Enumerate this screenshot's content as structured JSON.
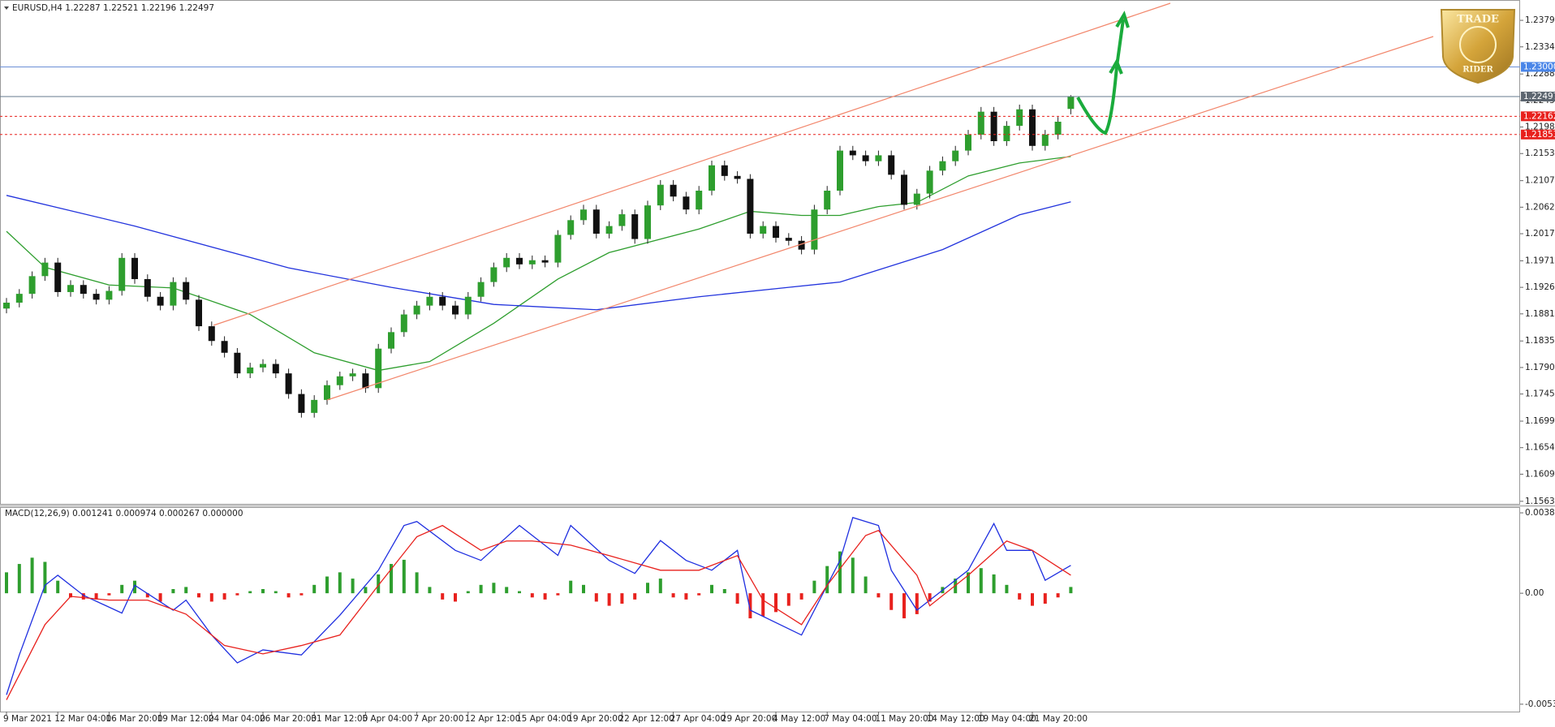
{
  "chart_data": [
    {
      "type": "candlestick",
      "header": "EURUSD,H4  1.22287 1.22521 1.22196 1.22497",
      "ylim": [
        1.156,
        1.2408
      ],
      "yticks": [
        {
          "value": 1.2379,
          "label": "1.23790"
        },
        {
          "value": 1.2334,
          "label": "1.23340"
        },
        {
          "value": 1.2288,
          "label": "1.22880"
        },
        {
          "value": 1.2243,
          "label": "1.22430"
        },
        {
          "value": 1.2198,
          "label": "1.21980"
        },
        {
          "value": 1.2153,
          "label": "1.21530"
        },
        {
          "value": 1.2107,
          "label": "1.21070"
        },
        {
          "value": 1.2062,
          "label": "1.20620"
        },
        {
          "value": 1.2017,
          "label": "1.20170"
        },
        {
          "value": 1.1971,
          "label": "1.19710"
        },
        {
          "value": 1.1926,
          "label": "1.19260"
        },
        {
          "value": 1.1881,
          "label": "1.18810"
        },
        {
          "value": 1.1835,
          "label": "1.18350"
        },
        {
          "value": 1.179,
          "label": "1.17900"
        },
        {
          "value": 1.1745,
          "label": "1.17450"
        },
        {
          "value": 1.1699,
          "label": "1.16990"
        },
        {
          "value": 1.1654,
          "label": "1.16540"
        },
        {
          "value": 1.1609,
          "label": "1.16090"
        },
        {
          "value": 1.1563,
          "label": "1.15630"
        }
      ],
      "up_color": "#2e9e2e",
      "down_color": "#111111",
      "open": [
        1.189,
        1.19,
        1.1915,
        1.1945,
        1.1968,
        1.1918,
        1.193,
        1.1915,
        1.1905,
        1.192,
        1.1976,
        1.194,
        1.191,
        1.1895,
        1.1935,
        1.1905,
        1.186,
        1.1835,
        1.1815,
        1.178,
        1.179,
        1.1796,
        1.178,
        1.1745,
        1.1713,
        1.1735,
        1.176,
        1.1775,
        1.178,
        1.1755,
        1.1822,
        1.185,
        1.188,
        1.1895,
        1.191,
        1.1895,
        1.188,
        1.191,
        1.1935,
        1.196,
        1.1976,
        1.1965,
        1.1972,
        1.1968,
        1.2015,
        1.204,
        1.2058,
        1.2017,
        1.203,
        1.205,
        1.2008,
        1.2065,
        1.21,
        1.208,
        1.2058,
        1.209,
        1.2133,
        1.2115,
        1.211,
        1.2017,
        1.203,
        1.201,
        1.2005,
        1.199,
        1.2058,
        1.209,
        1.2158,
        1.215,
        1.214,
        1.215,
        1.2117,
        1.2066,
        1.2085,
        1.2124,
        1.214,
        1.2158,
        1.2185,
        1.2224,
        1.2174,
        1.22,
        1.2228,
        1.2166,
        1.2185,
        1.22287
      ],
      "high": [
        1.1908,
        1.1923,
        1.1953,
        1.1976,
        1.1976,
        1.1938,
        1.1938,
        1.1923,
        1.1928,
        1.1984,
        1.1984,
        1.1948,
        1.1918,
        1.1943,
        1.1943,
        1.1913,
        1.1868,
        1.1843,
        1.1823,
        1.1798,
        1.1804,
        1.1804,
        1.1788,
        1.1753,
        1.1743,
        1.1768,
        1.1783,
        1.1788,
        1.1788,
        1.183,
        1.1858,
        1.1888,
        1.1903,
        1.1918,
        1.1918,
        1.1903,
        1.1918,
        1.1943,
        1.1968,
        1.1984,
        1.1984,
        1.198,
        1.198,
        1.2023,
        1.2048,
        1.2066,
        1.2066,
        1.2038,
        1.2058,
        1.2058,
        1.2073,
        1.2108,
        1.2108,
        1.2088,
        1.2098,
        1.2141,
        1.2141,
        1.2123,
        1.2118,
        1.2038,
        1.2038,
        1.2018,
        1.2013,
        1.2066,
        1.2098,
        1.2166,
        1.2166,
        1.2158,
        1.2158,
        1.2158,
        1.2125,
        1.2093,
        1.2132,
        1.2148,
        1.2166,
        1.2193,
        1.2232,
        1.2232,
        1.2208,
        1.2236,
        1.2236,
        1.2193,
        1.2215,
        1.22521
      ],
      "low": [
        1.1882,
        1.1892,
        1.1907,
        1.1937,
        1.191,
        1.191,
        1.1907,
        1.1897,
        1.1897,
        1.1912,
        1.1932,
        1.1902,
        1.1887,
        1.1887,
        1.1897,
        1.1852,
        1.1827,
        1.1807,
        1.1772,
        1.1772,
        1.1782,
        1.1772,
        1.1737,
        1.1705,
        1.1705,
        1.1727,
        1.1752,
        1.1767,
        1.1747,
        1.1747,
        1.1814,
        1.1842,
        1.1872,
        1.1887,
        1.1887,
        1.1872,
        1.1872,
        1.1902,
        1.1927,
        1.1952,
        1.1957,
        1.1957,
        1.196,
        1.196,
        1.2007,
        1.2032,
        1.2009,
        1.2009,
        1.2022,
        1.2,
        1.2,
        1.2057,
        1.2072,
        1.205,
        1.205,
        1.2082,
        1.2107,
        1.2102,
        1.2009,
        1.2009,
        1.2002,
        1.1997,
        1.1982,
        1.1982,
        1.205,
        1.2082,
        1.2142,
        1.2132,
        1.2132,
        1.2109,
        1.2058,
        1.2058,
        1.2077,
        1.2116,
        1.2132,
        1.215,
        1.2177,
        1.2166,
        1.2166,
        1.2192,
        1.2158,
        1.2158,
        1.2177,
        1.22196
      ],
      "close": [
        1.19,
        1.1915,
        1.1945,
        1.1968,
        1.1918,
        1.193,
        1.1915,
        1.1905,
        1.192,
        1.1976,
        1.194,
        1.191,
        1.1895,
        1.1935,
        1.1905,
        1.186,
        1.1835,
        1.1815,
        1.178,
        1.179,
        1.1796,
        1.178,
        1.1745,
        1.1713,
        1.1735,
        1.176,
        1.1775,
        1.178,
        1.1755,
        1.1822,
        1.185,
        1.188,
        1.1895,
        1.191,
        1.1895,
        1.188,
        1.191,
        1.1935,
        1.196,
        1.1976,
        1.1965,
        1.1972,
        1.1968,
        1.2015,
        1.204,
        1.2058,
        1.2017,
        1.203,
        1.205,
        1.2008,
        1.2065,
        1.21,
        1.208,
        1.2058,
        1.209,
        1.2133,
        1.2115,
        1.211,
        1.2017,
        1.203,
        1.201,
        1.2005,
        1.199,
        1.2058,
        1.209,
        1.2158,
        1.215,
        1.214,
        1.215,
        1.2117,
        1.2066,
        1.2085,
        1.2124,
        1.214,
        1.2158,
        1.2185,
        1.2224,
        1.2174,
        1.22,
        1.2228,
        1.2166,
        1.2185,
        1.2207,
        1.22497
      ],
      "lines": [
        {
          "color": "#2e9e2e",
          "x": [
            0,
            3,
            8,
            13,
            19,
            24,
            29,
            33,
            38,
            43,
            47,
            54,
            58,
            62,
            65,
            68,
            71,
            75,
            79,
            83
          ],
          "values": [
            1.2021,
            1.196,
            1.193,
            1.1925,
            1.188,
            1.1815,
            1.1785,
            1.18,
            1.1865,
            1.194,
            1.1985,
            1.2025,
            1.2055,
            1.2048,
            1.2048,
            1.2063,
            1.207,
            1.2115,
            1.2137,
            1.2148
          ]
        },
        {
          "color": "#2233dd",
          "x": [
            0,
            10,
            22,
            30,
            38,
            46,
            54,
            61,
            65,
            73,
            79,
            83
          ],
          "values": [
            1.2082,
            1.203,
            1.1959,
            1.1926,
            1.1897,
            1.1888,
            1.191,
            1.1926,
            1.1935,
            1.199,
            1.2049,
            1.2071
          ]
        }
      ],
      "levels": [
        {
          "value": 1.23,
          "label": "1.23000",
          "color": "#6b8fd6",
          "box": "#4a86e8",
          "dashed": false
        },
        {
          "value": 1.22497,
          "label": "1.22497",
          "color": "#66788e",
          "box": "#5d6670",
          "dashed": false
        },
        {
          "value": 1.22162,
          "label": "1.22162",
          "color": "#e8211d",
          "box": "#e8211d",
          "dashed": true
        },
        {
          "value": 1.21853,
          "label": "1.21853",
          "color": "#e8211d",
          "box": "#e8211d",
          "dashed": true
        }
      ]
    },
    {
      "type": "macd",
      "header": "MACD(12,26,9) 0.001241 0.000974 0.000267 0.000000",
      "ylim": [
        -0.00566,
        0.00408
      ],
      "yticks": [
        {
          "value": 0.003845,
          "label": "0.003845"
        },
        {
          "value": 0,
          "label": "0.00"
        },
        {
          "value": -0.005307,
          "label": "-0.005307"
        }
      ],
      "xticks": [
        {
          "value": 0,
          "label": "9 Mar 2021"
        },
        {
          "value": 4,
          "label": "12 Mar 04:00"
        },
        {
          "value": 8,
          "label": "16 Mar 20:00"
        },
        {
          "value": 12,
          "label": "19 Mar 12:00"
        },
        {
          "value": 16,
          "label": "24 Mar 04:00"
        },
        {
          "value": 20,
          "label": "26 Mar 20:00"
        },
        {
          "value": 24,
          "label": "31 Mar 12:00"
        },
        {
          "value": 28,
          "label": "5 Apr 04:00"
        },
        {
          "value": 32,
          "label": "7 Apr 20:00"
        },
        {
          "value": 36,
          "label": "12 Apr 12:00"
        },
        {
          "value": 40,
          "label": "15 Apr 04:00"
        },
        {
          "value": 44,
          "label": "19 Apr 20:00"
        },
        {
          "value": 48,
          "label": "22 Apr 12:00"
        },
        {
          "value": 52,
          "label": "27 Apr 04:00"
        },
        {
          "value": 56,
          "label": "29 Apr 20:00"
        },
        {
          "value": 60,
          "label": "4 May 12:00"
        },
        {
          "value": 64,
          "label": "7 May 04:00"
        },
        {
          "value": 68,
          "label": "11 May 20:00"
        },
        {
          "value": 72,
          "label": "14 May 12:00"
        },
        {
          "value": 76,
          "label": "19 May 04:00"
        },
        {
          "value": 80,
          "label": "21 May 20:00"
        }
      ],
      "pos_color": "#2e9e2e",
      "neg_color": "#e8211d",
      "histogram": [
        0.001,
        0.0014,
        0.0017,
        0.0015,
        0.0006,
        -0.0002,
        -0.0003,
        -0.0003,
        -0.0001,
        0.0004,
        0.0006,
        -0.0002,
        -0.0004,
        0.0002,
        0.0003,
        -0.0002,
        -0.0004,
        -0.0003,
        -0.0001,
        0.0001,
        0.0002,
        0.0001,
        -0.0002,
        -0.0001,
        0.0004,
        0.0008,
        0.001,
        0.0007,
        0.0003,
        0.0009,
        0.0014,
        0.0016,
        0.001,
        0.0003,
        -0.0003,
        -0.0004,
        0.0001,
        0.0004,
        0.0005,
        0.0003,
        0.0001,
        -0.0002,
        -0.0003,
        -0.0001,
        0.0006,
        0.0004,
        -0.0004,
        -0.0006,
        -0.0005,
        -0.0003,
        0.0005,
        0.0007,
        -0.0002,
        -0.0003,
        -0.0001,
        0.0004,
        0.0002,
        -0.0005,
        -0.0012,
        -0.0011,
        -0.0009,
        -0.0006,
        -0.0003,
        0.0006,
        0.0013,
        0.002,
        0.0017,
        0.0008,
        -0.0002,
        -0.0008,
        -0.0012,
        -0.001,
        -0.0004,
        0.0003,
        0.0007,
        0.001,
        0.0012,
        0.0009,
        0.0004,
        -0.0003,
        -0.0006,
        -0.0005,
        -0.0002,
        0.0003
      ],
      "lines": [
        {
          "color": "#1f2fe0",
          "x": [
            0,
            1,
            3,
            4,
            6,
            9,
            10,
            13,
            14,
            16,
            18,
            20,
            23,
            26,
            29,
            31,
            32,
            35,
            37,
            40,
            43,
            44,
            47,
            49,
            51,
            53,
            55,
            57,
            58,
            62,
            65,
            66,
            68,
            69,
            71,
            75,
            77,
            78,
            80,
            81,
            83
          ],
          "values": [
            -0.00486,
            -0.00295,
            0.00038,
            0.00086,
            -0.0001,
            -0.00095,
            0.00038,
            -0.00081,
            -0.00033,
            -0.002,
            -0.00333,
            -0.00271,
            -0.00295,
            -0.00105,
            0.0011,
            0.00324,
            0.00343,
            0.00205,
            0.00157,
            0.00324,
            0.00181,
            0.00324,
            0.00157,
            0.00095,
            0.00252,
            0.00157,
            0.0011,
            0.00205,
            -0.00081,
            -0.002,
            0.00157,
            0.00362,
            0.00324,
            0.0011,
            -0.00081,
            0.0011,
            0.00333,
            0.00205,
            0.00205,
            0.00062,
            0.00133
          ]
        },
        {
          "color": "#e8211d",
          "x": [
            0,
            3,
            5,
            8,
            11,
            14,
            17,
            20,
            23,
            26,
            29,
            32,
            34,
            37,
            39,
            41,
            44,
            47,
            51,
            54,
            57,
            59,
            62,
            64,
            67,
            68,
            71,
            72,
            75,
            78,
            80,
            83
          ],
          "values": [
            -0.0051,
            -0.0015,
            -0.00015,
            -0.00033,
            -0.00033,
            -0.001,
            -0.0025,
            -0.0029,
            -0.0025,
            -0.002,
            0.00038,
            0.0027,
            0.00324,
            0.00205,
            0.0025,
            0.0025,
            0.0023,
            0.0018,
            0.0011,
            0.0011,
            0.0018,
            -0.00033,
            -0.0015,
            0.00038,
            0.00276,
            0.003,
            0.00086,
            -0.0006,
            0.00086,
            0.0025,
            0.00205,
            0.00086
          ]
        }
      ]
    }
  ],
  "logo": {
    "top": "TRADE",
    "bottom": "RIDER"
  }
}
